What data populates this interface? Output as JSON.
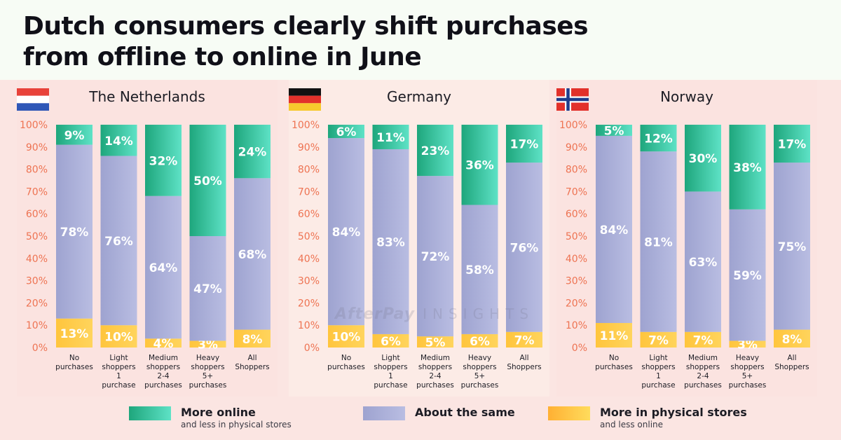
{
  "title": {
    "line1": "Dutch consumers clearly shift purchases",
    "line2": "from offline to online in June"
  },
  "watermark": {
    "brand": "AfterPay",
    "sub": "INSIGHTS"
  },
  "colors": {
    "online": "#1ea67c",
    "online_light": "#5ee2c6",
    "same": "#9ea3d0",
    "same_light": "#b9bde2",
    "stores": "#ffc53d",
    "stores_light": "#ffd45c",
    "axis_text": "#ee7352",
    "panel_bg_a": "#fbe3e0",
    "panel_bg_b": "#fcebe6"
  },
  "legend": [
    {
      "key": "online",
      "label": "More online",
      "sub": "and less in physical stores"
    },
    {
      "key": "same",
      "label": "About the same",
      "sub": ""
    },
    {
      "key": "stores",
      "label": "More in physical stores",
      "sub": "and less online"
    }
  ],
  "chart_data": [
    {
      "type": "bar",
      "stacked": true,
      "title": "The Netherlands",
      "flag": "netherlands-flag",
      "categories": [
        [
          "No",
          "purchases"
        ],
        [
          "Light",
          "shoppers",
          "1",
          "purchase"
        ],
        [
          "Medium",
          "shoppers",
          "2-4",
          "purchases"
        ],
        [
          "Heavy",
          "shoppers",
          "5+",
          "purchases"
        ],
        [
          "All",
          "Shoppers"
        ]
      ],
      "series": [
        {
          "name": "More in physical stores",
          "values": [
            13,
            10,
            4,
            3,
            8
          ]
        },
        {
          "name": "About the same",
          "values": [
            78,
            76,
            64,
            47,
            68
          ]
        },
        {
          "name": "More online",
          "values": [
            9,
            14,
            32,
            50,
            24
          ]
        }
      ],
      "ylim": [
        0,
        100
      ],
      "yticks": [
        "0%",
        "10%",
        "20%",
        "30%",
        "40%",
        "50%",
        "60%",
        "70%",
        "80%",
        "90%",
        "100%"
      ]
    },
    {
      "type": "bar",
      "stacked": true,
      "title": "Germany",
      "flag": "germany-flag",
      "categories": [
        [
          "No",
          "purchases"
        ],
        [
          "Light",
          "shoppers",
          "1",
          "purchase"
        ],
        [
          "Medium",
          "shoppers",
          "2-4",
          "purchases"
        ],
        [
          "Heavy",
          "shoppers",
          "5+",
          "purchases"
        ],
        [
          "All",
          "Shoppers"
        ]
      ],
      "series": [
        {
          "name": "More in physical stores",
          "values": [
            10,
            6,
            5,
            6,
            7
          ]
        },
        {
          "name": "About the same",
          "values": [
            84,
            83,
            72,
            58,
            76
          ]
        },
        {
          "name": "More online",
          "values": [
            6,
            11,
            23,
            36,
            17
          ]
        }
      ],
      "ylim": [
        0,
        100
      ],
      "yticks": [
        "0%",
        "10%",
        "20%",
        "30%",
        "40%",
        "50%",
        "60%",
        "70%",
        "80%",
        "90%",
        "100%"
      ]
    },
    {
      "type": "bar",
      "stacked": true,
      "title": "Norway",
      "flag": "norway-flag",
      "categories": [
        [
          "No",
          "purchases"
        ],
        [
          "Light",
          "shoppers",
          "1",
          "purchase"
        ],
        [
          "Medium",
          "shoppers",
          "2-4",
          "purchases"
        ],
        [
          "Heavy",
          "shoppers",
          "5+",
          "purchases"
        ],
        [
          "All",
          "Shoppers"
        ]
      ],
      "series": [
        {
          "name": "More in physical stores",
          "values": [
            11,
            7,
            7,
            3,
            8
          ]
        },
        {
          "name": "About the same",
          "values": [
            84,
            81,
            63,
            59,
            75
          ]
        },
        {
          "name": "More online",
          "values": [
            5,
            12,
            30,
            38,
            17
          ]
        }
      ],
      "ylim": [
        0,
        100
      ],
      "yticks": [
        "0%",
        "10%",
        "20%",
        "30%",
        "40%",
        "50%",
        "60%",
        "70%",
        "80%",
        "90%",
        "100%"
      ]
    }
  ]
}
